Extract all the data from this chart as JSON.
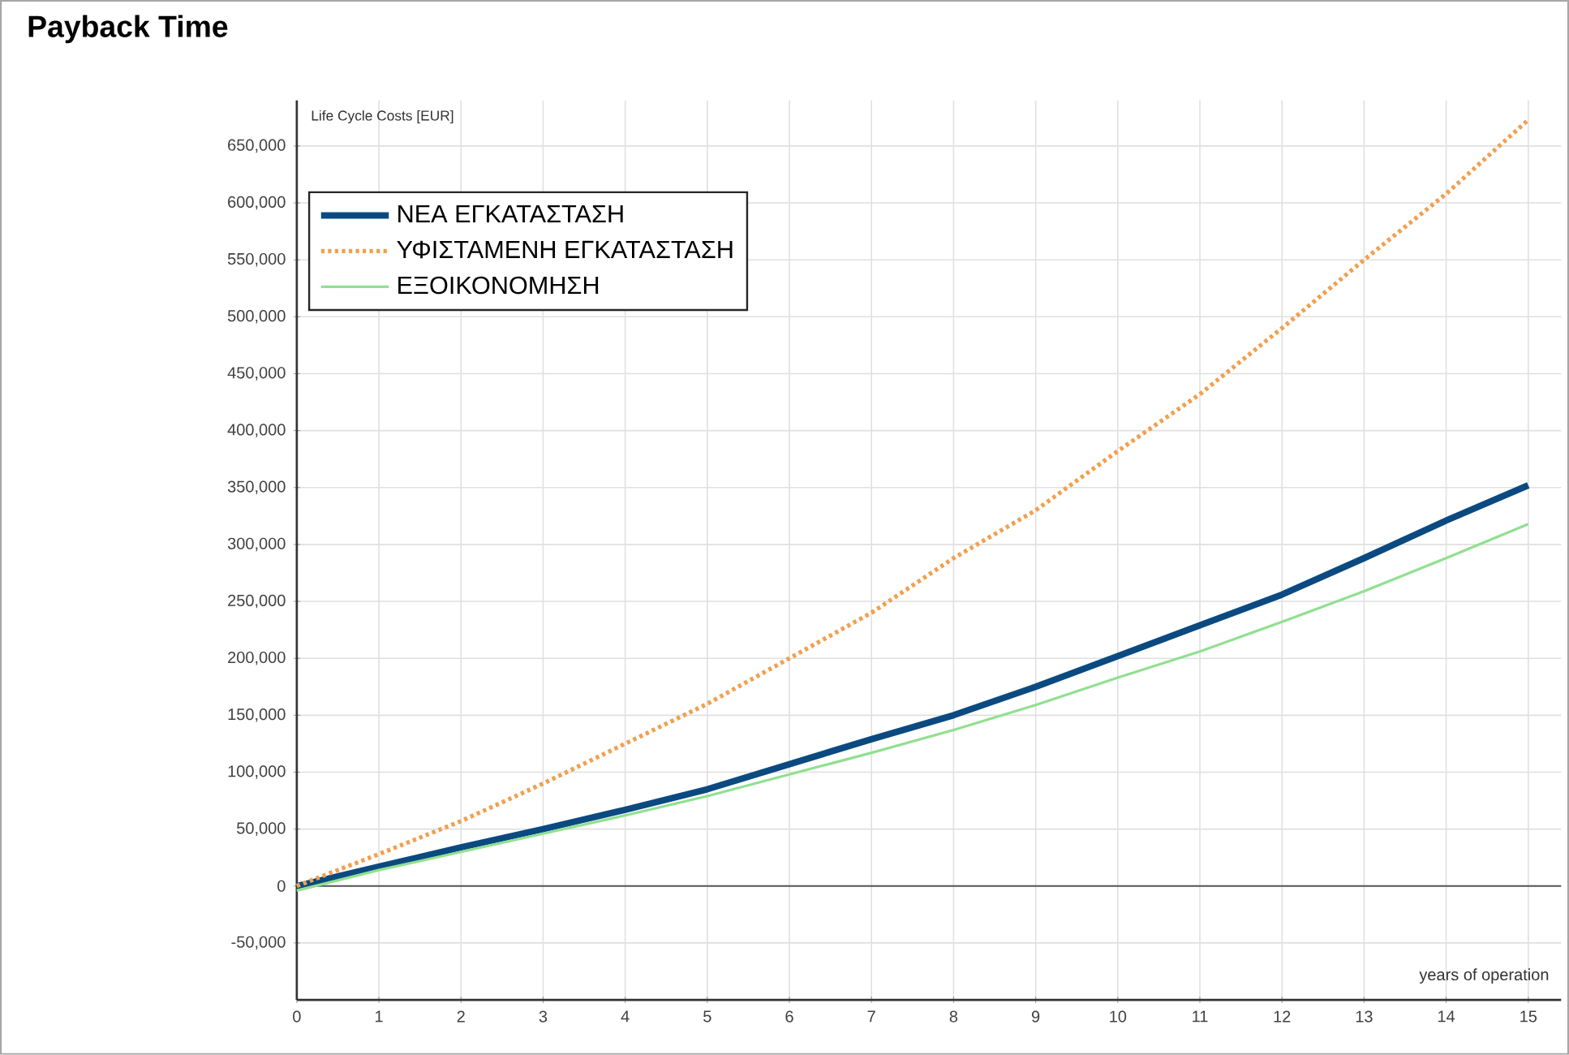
{
  "chart_data": {
    "type": "line",
    "title": "Payback Time",
    "xlabel": "years of operation",
    "ylabel": "Life Cycle Costs [EUR]",
    "x": [
      0,
      1,
      2,
      3,
      4,
      5,
      6,
      7,
      8,
      9,
      10,
      11,
      12,
      13,
      14,
      15
    ],
    "series": [
      {
        "name": "ΝΕΑ ΕΓΚΑΤΑΣΤΑΣΗ",
        "color": "#0b4a80",
        "line_style": "solid",
        "values": [
          0,
          17000,
          34000,
          50000,
          67000,
          85000,
          107000,
          129000,
          150000,
          175000,
          202000,
          229000,
          256000,
          288000,
          321000,
          352000
        ]
      },
      {
        "name": "ΥΦΙΣΤΑΜΕΝΗ ΕΓΚΑΤΑΣΤΑΣΗ",
        "color": "#f0a050",
        "line_style": "dotted",
        "values": [
          0,
          28000,
          57000,
          90000,
          125000,
          160000,
          200000,
          240000,
          288000,
          330000,
          382000,
          432000,
          490000,
          550000,
          608000,
          673000
        ]
      },
      {
        "name": "ΕΞΟΙΚΟΝΟΜΗΣΗ",
        "color": "#90e090",
        "line_style": "solid",
        "values": [
          -4000,
          14000,
          30000,
          46000,
          62000,
          79000,
          98000,
          117000,
          137000,
          159000,
          183000,
          206000,
          232000,
          259000,
          288000,
          318000
        ]
      }
    ],
    "xlim": [
      0,
      15.4
    ],
    "ylim": [
      -100000,
      690000
    ],
    "xticks": [
      0,
      1,
      2,
      3,
      4,
      5,
      6,
      7,
      8,
      9,
      10,
      11,
      12,
      13,
      14,
      15
    ],
    "yticks": [
      {
        "value": -50000,
        "label": "-50,000"
      },
      0,
      {
        "value": 50000,
        "label": "50,000"
      },
      {
        "value": 100000,
        "label": "100,000"
      },
      {
        "value": 150000,
        "label": "150,000"
      },
      {
        "value": 200000,
        "label": "200,000"
      },
      {
        "value": 250000,
        "label": "250,000"
      },
      {
        "value": 300000,
        "label": "300,000"
      },
      {
        "value": 350000,
        "label": "350,000"
      },
      {
        "value": 400000,
        "label": "400,000"
      },
      {
        "value": 450000,
        "label": "450,000"
      },
      {
        "value": 500000,
        "label": "500,000"
      },
      {
        "value": 550000,
        "label": "550,000"
      },
      {
        "value": 600000,
        "label": "600,000"
      },
      {
        "value": 650000,
        "label": "650,000"
      }
    ],
    "ref_lines": [
      {
        "axis": "y",
        "value": 0,
        "color": "#555555"
      }
    ],
    "grid": true,
    "legend": "top left"
  }
}
